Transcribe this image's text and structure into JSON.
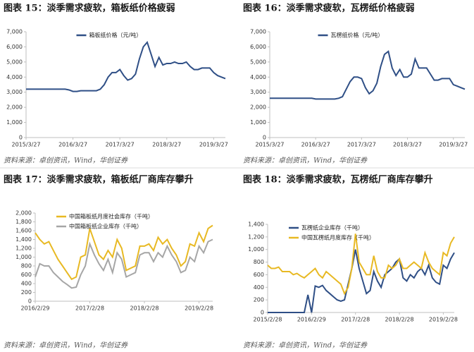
{
  "chart_data": [
    {
      "type": "line",
      "title": "图表 15：淡季需求疲软，箱板纸价格疲弱",
      "source": "资料来源：卓创资讯，Wind，华创证券",
      "legend": "upper center",
      "categories": [
        "2015/3/27",
        null,
        null,
        null,
        null,
        null,
        null,
        null,
        null,
        null,
        null,
        null,
        "2016/3/27",
        null,
        null,
        null,
        null,
        null,
        null,
        null,
        null,
        null,
        null,
        null,
        "2017/3/27",
        null,
        null,
        null,
        null,
        null,
        null,
        null,
        null,
        null,
        null,
        null,
        "2018/3/27",
        null,
        null,
        null,
        null,
        null,
        null,
        null,
        null,
        null,
        null,
        null,
        "2019/3/27",
        null,
        null,
        null
      ],
      "series": [
        {
          "name": "箱板纸价格（元/吨）",
          "color": "#2f4f86",
          "values": [
            3200,
            3200,
            3200,
            3200,
            3200,
            3200,
            3200,
            3200,
            3200,
            3200,
            3200,
            3150,
            3050,
            3050,
            3100,
            3100,
            3100,
            3100,
            3100,
            3200,
            3500,
            4000,
            4300,
            4300,
            4500,
            4100,
            3800,
            3900,
            4200,
            5200,
            6000,
            6300,
            5500,
            4700,
            5300,
            4800,
            4900,
            4900,
            5000,
            4900,
            4900,
            5000,
            4700,
            4500,
            4500,
            4600,
            4600,
            4600,
            4300,
            4100,
            4000,
            3900
          ]
        }
      ],
      "ylim": [
        0,
        7000
      ],
      "yticks": [
        0,
        {
          "value": 1000,
          "label": "1,000"
        },
        {
          "value": 2000,
          "label": "2,000"
        },
        {
          "value": 3000,
          "label": "3,000"
        },
        {
          "value": 4000,
          "label": "4,000"
        },
        {
          "value": 5000,
          "label": "5,000"
        },
        {
          "value": 6000,
          "label": "6,000"
        },
        {
          "value": 7000,
          "label": "7,000"
        }
      ]
    },
    {
      "type": "line",
      "title": "图表 16：淡季需求疲软，瓦楞纸价格疲弱",
      "source": "资料来源：卓创资讯，Wind，华创证券",
      "legend": "upper center",
      "categories": [
        "2015/3/27",
        null,
        null,
        null,
        null,
        null,
        null,
        null,
        null,
        null,
        null,
        null,
        "2016/3/27",
        null,
        null,
        null,
        null,
        null,
        null,
        null,
        null,
        null,
        null,
        null,
        "2017/3/27",
        null,
        null,
        null,
        null,
        null,
        null,
        null,
        null,
        null,
        null,
        null,
        "2018/3/27",
        null,
        null,
        null,
        null,
        null,
        null,
        null,
        null,
        null,
        null,
        null,
        "2019/3/27",
        null,
        null,
        null
      ],
      "series": [
        {
          "name": "瓦楞纸价格（元/吨）",
          "color": "#2f4f86",
          "values": [
            2600,
            2600,
            2600,
            2600,
            2600,
            2600,
            2600,
            2600,
            2600,
            2600,
            2600,
            2600,
            2550,
            2550,
            2550,
            2550,
            2550,
            2550,
            2600,
            2700,
            3200,
            3700,
            4000,
            4000,
            3900,
            3300,
            2900,
            3100,
            3600,
            4700,
            5500,
            5700,
            4600,
            4100,
            4500,
            4000,
            4000,
            4200,
            5200,
            4600,
            4600,
            4600,
            4200,
            3800,
            3800,
            3900,
            3900,
            3900,
            3500,
            3400,
            3300,
            3200
          ]
        }
      ],
      "ylim": [
        0,
        7000
      ],
      "yticks": [
        0,
        {
          "value": 1000,
          "label": "1,000"
        },
        {
          "value": 2000,
          "label": "2,000"
        },
        {
          "value": 3000,
          "label": "3,000"
        },
        {
          "value": 4000,
          "label": "4,000"
        },
        {
          "value": 5000,
          "label": "5,000"
        },
        {
          "value": 6000,
          "label": "6,000"
        },
        {
          "value": 7000,
          "label": "7,000"
        }
      ]
    },
    {
      "type": "line",
      "title": "图表 17：淡季需求疲软，箱板纸厂商库存攀升",
      "source": "资料来源：卓创资讯，Wind，华创证券",
      "legend": "upper left",
      "categories": [
        "2016/2/29",
        null,
        null,
        null,
        null,
        null,
        null,
        null,
        null,
        null,
        null,
        null,
        "2017/2/28",
        null,
        null,
        null,
        null,
        null,
        null,
        null,
        null,
        null,
        null,
        null,
        "2018/2/28",
        null,
        null,
        null,
        null,
        null,
        null,
        null,
        null,
        null,
        null,
        null,
        "2019/2/28",
        null,
        null,
        null
      ],
      "series": [
        {
          "name": "中国箱板纸月度社会库存（千吨）",
          "color": "#e8b923",
          "values": [
            1550,
            1400,
            1300,
            1350,
            1150,
            950,
            800,
            650,
            500,
            550,
            1000,
            1050,
            1650,
            1350,
            1050,
            950,
            1150,
            1000,
            1400,
            1200,
            700,
            750,
            800,
            1250,
            1250,
            1300,
            1150,
            1450,
            1300,
            1400,
            1200,
            1050,
            800,
            900,
            1300,
            1250,
            1550,
            1350,
            1650,
            1720
          ]
        },
        {
          "name": "中国箱板纸企业库存（千吨）",
          "color": "#a6a6a6",
          "values": [
            550,
            850,
            800,
            800,
            650,
            550,
            450,
            380,
            300,
            320,
            600,
            800,
            1300,
            1050,
            850,
            700,
            950,
            650,
            1100,
            950,
            550,
            600,
            650,
            1050,
            1100,
            1100,
            900,
            1100,
            1000,
            1250,
            1050,
            900,
            650,
            700,
            1000,
            900,
            1250,
            1100,
            1350,
            1400
          ]
        }
      ],
      "ylim": [
        0,
        2000
      ],
      "yticks": [
        0,
        200,
        400,
        600,
        800,
        {
          "value": 1000,
          "label": "1,000"
        },
        {
          "value": 1200,
          "label": "1,200"
        },
        {
          "value": 1400,
          "label": "1,400"
        },
        {
          "value": 1600,
          "label": "1,600"
        },
        {
          "value": 1800,
          "label": "1,800"
        },
        {
          "value": 2000,
          "label": "2,000"
        }
      ]
    },
    {
      "type": "line",
      "title": "图表 18：淡季需求疲软，瓦楞纸厂商库存攀升",
      "source": "资料来源：卓创资讯，Wind，华创证券",
      "legend": "upper left",
      "categories": [
        "2015/2/28",
        null,
        null,
        null,
        null,
        null,
        null,
        null,
        null,
        null,
        null,
        null,
        "2016/2/29",
        null,
        null,
        null,
        null,
        null,
        null,
        null,
        null,
        null,
        null,
        null,
        "2017/2/28",
        null,
        null,
        null,
        null,
        null,
        null,
        null,
        null,
        null,
        null,
        null,
        "2018/2/28",
        null,
        null,
        null,
        null,
        null,
        null,
        null,
        null,
        null,
        null,
        null,
        "2019/2/28",
        null,
        null,
        null
      ],
      "series": [
        {
          "name": "瓦楞纸企业库存（千吨）",
          "color": "#2f4f86",
          "values": [
            0,
            0,
            0,
            0,
            0,
            0,
            0,
            0,
            0,
            0,
            0,
            280,
            0,
            420,
            400,
            430,
            350,
            300,
            250,
            200,
            180,
            200,
            450,
            700,
            1000,
            700,
            500,
            300,
            350,
            650,
            500,
            400,
            600,
            650,
            700,
            800,
            850,
            550,
            500,
            600,
            550,
            650,
            700,
            600,
            750,
            550,
            480,
            450,
            750,
            700,
            850,
            950
          ]
        },
        {
          "name": "中国瓦楞纸月度库存（千吨）",
          "color": "#e8b923",
          "values": [
            750,
            700,
            700,
            720,
            650,
            650,
            650,
            600,
            620,
            580,
            550,
            600,
            650,
            700,
            600,
            550,
            650,
            600,
            550,
            500,
            450,
            300,
            400,
            700,
            1250,
            800,
            700,
            600,
            600,
            900,
            650,
            550,
            550,
            750,
            700,
            750,
            850,
            700,
            700,
            750,
            800,
            750,
            700,
            950,
            800,
            700,
            650,
            600,
            950,
            900,
            1100,
            1200
          ]
        }
      ],
      "ylim": [
        0,
        1400
      ],
      "yticks": [
        0,
        200,
        400,
        600,
        800,
        {
          "value": 1000,
          "label": "1,000"
        },
        {
          "value": 1200,
          "label": "1,200"
        },
        {
          "value": 1400,
          "label": "1,400"
        }
      ]
    }
  ]
}
